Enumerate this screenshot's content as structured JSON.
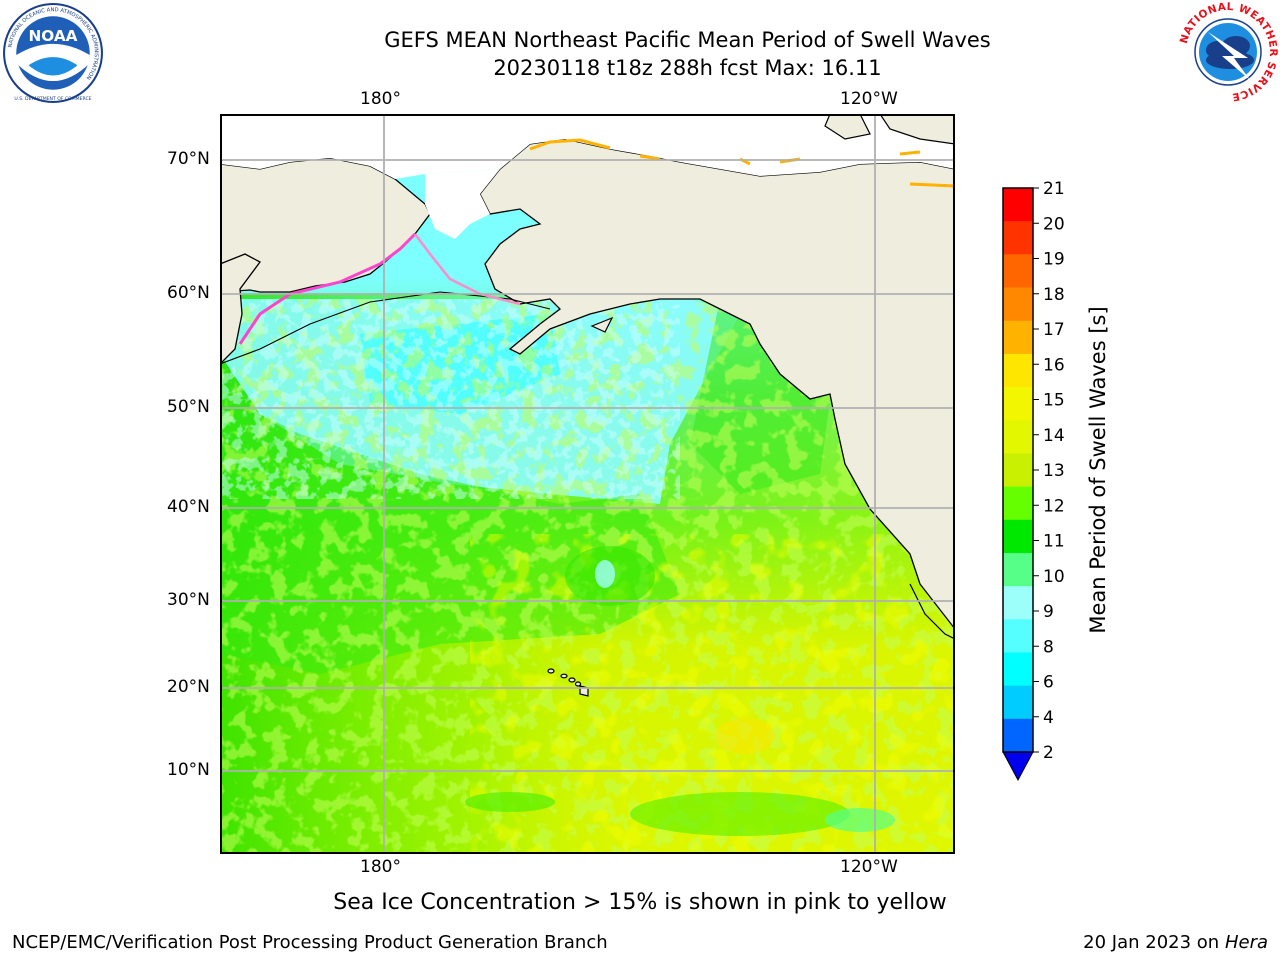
{
  "header": {
    "title_line1": "GEFS MEAN Northeast Pacific Mean Period of Swell Waves",
    "title_line2": "20230118 t18z 288h fcst   Max: 16.11"
  },
  "logos": {
    "left": "noaa-logo",
    "left_text": "NOAA",
    "left_ring_text": "NATIONAL OCEANIC AND ATMOSPHERIC ADMINISTRATION",
    "left_bottom_text": "U.S. DEPARTMENT OF COMMERCE",
    "right": "nws-logo",
    "right_ring_text": "NATIONAL WEATHER SERVICE"
  },
  "map": {
    "lon_labels_top": [
      "180°",
      "120°W"
    ],
    "lon_labels_bottom": [
      "180°",
      "120°W"
    ],
    "lat_labels": [
      "70°N",
      "60°N",
      "50°N",
      "40°N",
      "30°N",
      "20°N",
      "10°N"
    ],
    "land_color": "#efedde",
    "grid_color": "#b0b0b0",
    "projection": "Mercator"
  },
  "colorbar": {
    "label": "Mean Period of Swell Waves [s]",
    "ticks": [
      "21",
      "20",
      "19",
      "18",
      "17",
      "16",
      "15",
      "14",
      "13",
      "12",
      "11",
      "10",
      "9",
      "8",
      "6",
      "4",
      "2"
    ],
    "colors": [
      "#ff0000",
      "#ff3300",
      "#ff6600",
      "#ff8800",
      "#ffb300",
      "#ffe600",
      "#f2f700",
      "#e3f800",
      "#c8f000",
      "#66ff00",
      "#00e800",
      "#55ff88",
      "#9dfffa",
      "#55ffff",
      "#00ffff",
      "#00ccff",
      "#0066ff"
    ],
    "extend_color": "#0000ee"
  },
  "notes": {
    "sea_ice": "Sea Ice Concentration > 15% is shown in pink to yellow",
    "footer_left": "NCEP/EMC/Verification Post Processing Product Generation Branch",
    "footer_date": "20 Jan 2023 on ",
    "footer_host": "Hera"
  }
}
